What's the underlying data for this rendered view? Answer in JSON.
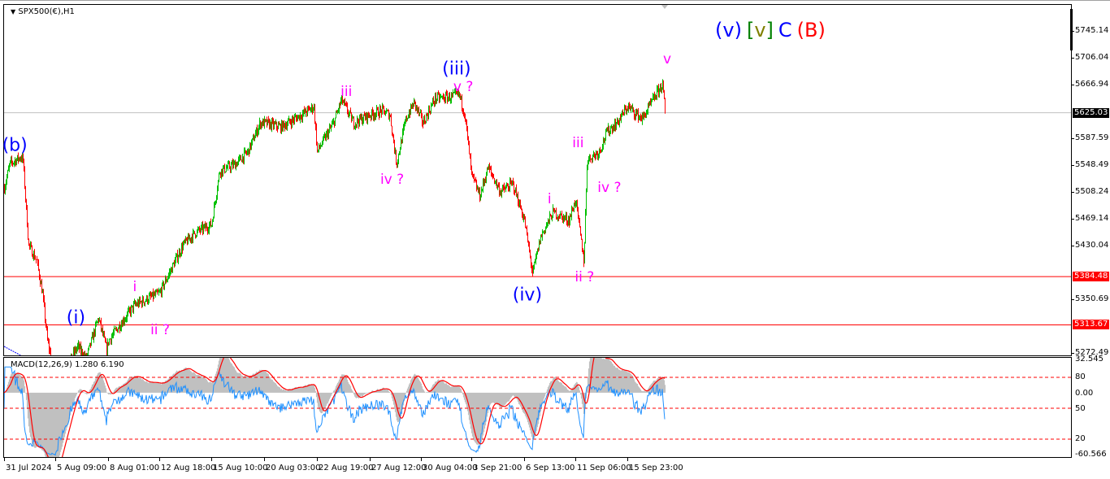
{
  "chart_data": {
    "type": "candlestick",
    "symbol_title": "SPX500(€),H1",
    "heading": [
      {
        "text": "(v)",
        "color": "#0000ff"
      },
      {
        "text": "[",
        "color": "#008000"
      },
      {
        "text": "v",
        "color": "#808000"
      },
      {
        "text": "]",
        "color": "#008000"
      },
      {
        "text": "C",
        "color": "#0000ff"
      },
      {
        "text": "(B)",
        "color": "#ff0000"
      }
    ],
    "price_axis": {
      "ticks": [
        "5745.14",
        "5706.04",
        "5666.94",
        "5587.59",
        "5548.49",
        "5508.24",
        "5469.14",
        "5430.04",
        "5350.69",
        "5272.49"
      ],
      "range": [
        5272.49,
        5745.14
      ]
    },
    "current_price": {
      "value": 5625.03,
      "label": "5625.03",
      "color": "#000000"
    },
    "horizontal_lines": [
      {
        "value": 5384.48,
        "label": "5384.48",
        "color": "#ff0000"
      },
      {
        "value": 5313.67,
        "label": "5313.67",
        "color": "#ff0000"
      }
    ],
    "time_axis": [
      {
        "label": "31 Jul 2024",
        "t": "2024-07-31T00:00"
      },
      {
        "label": "5 Aug 09:00",
        "t": "2024-08-05T09:00"
      },
      {
        "label": "8 Aug 01:00",
        "t": "2024-08-08T01:00"
      },
      {
        "label": "12 Aug 18:00",
        "t": "2024-08-12T18:00"
      },
      {
        "label": "15 Aug 10:00",
        "t": "2024-08-15T10:00"
      },
      {
        "label": "20 Aug 03:00",
        "t": "2024-08-20T03:00"
      },
      {
        "label": "22 Aug 19:00",
        "t": "2024-08-22T19:00"
      },
      {
        "label": "27 Aug 12:00",
        "t": "2024-08-27T12:00"
      },
      {
        "label": "30 Aug 04:00",
        "t": "2024-08-30T04:00"
      },
      {
        "label": "3 Sep 21:00",
        "t": "2024-09-03T21:00"
      },
      {
        "label": "6 Sep 13:00",
        "t": "2024-09-06T13:00"
      },
      {
        "label": "11 Sep 06:00",
        "t": "2024-09-11T06:00"
      },
      {
        "label": "15 Sep 23:00",
        "t": "2024-09-15T23:00"
      }
    ],
    "up_color": "#00c000",
    "down_color": "#ff0000",
    "price_path": [
      [
        "2024-07-31T00:00",
        5515
      ],
      [
        "2024-07-31T14:00",
        5550
      ],
      [
        "2024-08-01T17:00",
        5560
      ],
      [
        "2024-08-01T23:00",
        5556
      ],
      [
        "2024-08-02T13:00",
        5431
      ],
      [
        "2024-08-03T10:00",
        5407
      ],
      [
        "2024-08-04T00:00",
        5360
      ],
      [
        "2024-08-04T13:00",
        5288
      ],
      [
        "2024-08-05T09:00",
        5240
      ],
      [
        "2024-08-05T21:00",
        5250
      ],
      [
        "2024-08-06T12:00",
        5282
      ],
      [
        "2024-08-06T22:00",
        5264
      ],
      [
        "2024-08-07T13:00",
        5324
      ],
      [
        "2024-08-07T23:00",
        5276
      ],
      [
        "2024-08-08T01:00",
        5290
      ],
      [
        "2024-08-09T07:00",
        5318
      ],
      [
        "2024-08-10T10:00",
        5342
      ],
      [
        "2024-08-11T22:00",
        5354
      ],
      [
        "2024-08-12T18:00",
        5360
      ],
      [
        "2024-08-13T13:00",
        5407
      ],
      [
        "2024-08-13T23:00",
        5431
      ],
      [
        "2024-08-14T14:00",
        5449
      ],
      [
        "2024-08-15T10:00",
        5461
      ],
      [
        "2024-08-16T03:00",
        5539
      ],
      [
        "2024-08-17T14:00",
        5550
      ],
      [
        "2024-08-18T16:00",
        5568
      ],
      [
        "2024-08-19T18:00",
        5610
      ],
      [
        "2024-08-20T03:00",
        5610
      ],
      [
        "2024-08-20T23:00",
        5604
      ],
      [
        "2024-08-22T00:00",
        5622
      ],
      [
        "2024-08-22T15:00",
        5634
      ],
      [
        "2024-08-22T19:00",
        5568
      ],
      [
        "2024-08-24T06:00",
        5610
      ],
      [
        "2024-08-24T23:00",
        5644
      ],
      [
        "2024-08-26T01:00",
        5610
      ],
      [
        "2024-08-27T12:00",
        5622
      ],
      [
        "2024-08-28T03:00",
        5628
      ],
      [
        "2024-08-28T13:00",
        5622
      ],
      [
        "2024-08-28T21:00",
        5550
      ],
      [
        "2024-08-29T09:00",
        5616
      ],
      [
        "2024-08-29T19:00",
        5640
      ],
      [
        "2024-08-30T08:00",
        5610
      ],
      [
        "2024-08-31T11:00",
        5646
      ],
      [
        "2024-09-01T23:00",
        5648
      ],
      [
        "2024-09-02T17:00",
        5652
      ],
      [
        "2024-09-03T06:00",
        5622
      ],
      [
        "2024-09-03T21:00",
        5533
      ],
      [
        "2024-09-04T07:00",
        5503
      ],
      [
        "2024-09-04T17:00",
        5545
      ],
      [
        "2024-09-05T08:00",
        5509
      ],
      [
        "2024-09-05T23:00",
        5521
      ],
      [
        "2024-09-06T13:00",
        5467
      ],
      [
        "2024-09-07T07:00",
        5389
      ],
      [
        "2024-09-08T01:00",
        5443
      ],
      [
        "2024-09-09T04:00",
        5479
      ],
      [
        "2024-09-10T15:00",
        5467
      ],
      [
        "2024-09-11T06:00",
        5497
      ],
      [
        "2024-09-12T00:00",
        5407
      ],
      [
        "2024-09-12T07:00",
        5556
      ],
      [
        "2024-09-13T09:00",
        5568
      ],
      [
        "2024-09-14T03:00",
        5598
      ],
      [
        "2024-09-15T00:00",
        5610
      ],
      [
        "2024-09-15T23:00",
        5634
      ],
      [
        "2024-09-16T17:00",
        5616
      ],
      [
        "2024-09-17T13:00",
        5658
      ],
      [
        "2024-09-17T18:00",
        5667
      ],
      [
        "2024-09-17T21:00",
        5625
      ]
    ],
    "wave_labels": [
      {
        "text": "(b)",
        "color": "#0000ff",
        "t": "2024-08-01T03:00",
        "price": 5577,
        "size": "big"
      },
      {
        "text": "(i)",
        "color": "#0000ff",
        "t": "2024-08-06T10:00",
        "price": 5324,
        "size": "big"
      },
      {
        "text": "i",
        "color": "#ff00ff",
        "t": "2024-08-10T12:00",
        "price": 5369,
        "size": "small"
      },
      {
        "text": "ii ?",
        "color": "#ff00ff",
        "t": "2024-08-12T19:00",
        "price": 5306,
        "size": "small"
      },
      {
        "text": "iii",
        "color": "#ff00ff",
        "t": "2024-08-25T10:00",
        "price": 5656,
        "size": "small"
      },
      {
        "text": "iv ?",
        "color": "#ff00ff",
        "t": "2024-08-28T16:00",
        "price": 5527,
        "size": "small"
      },
      {
        "text": "(iii)",
        "color": "#0000ff",
        "t": "2024-09-02T12:00",
        "price": 5689,
        "size": "big"
      },
      {
        "text": "v ?",
        "color": "#ff00ff",
        "t": "2024-09-03T03:00",
        "price": 5663,
        "size": "small"
      },
      {
        "text": "(iv)",
        "color": "#0000ff",
        "t": "2024-09-06T20:00",
        "price": 5357,
        "size": "big"
      },
      {
        "text": "i",
        "color": "#ff00ff",
        "t": "2024-09-08T21:00",
        "price": 5498,
        "size": "small"
      },
      {
        "text": "ii ?",
        "color": "#ff00ff",
        "t": "2024-09-12T02:00",
        "price": 5383,
        "size": "small"
      },
      {
        "text": "iii",
        "color": "#ff00ff",
        "t": "2024-09-11T12:00",
        "price": 5580,
        "size": "small"
      },
      {
        "text": "iv ?",
        "color": "#ff00ff",
        "t": "2024-09-14T08:00",
        "price": 5515,
        "size": "small"
      },
      {
        "text": "v",
        "color": "#ff00ff",
        "t": "2024-09-18T00:00",
        "price": 5703,
        "size": "small"
      }
    ],
    "macd": {
      "title": "MACD(12,26,9) 1.280 6.190",
      "axis_labels": [
        "32.545",
        "80",
        "0.00",
        "50",
        "20",
        "-60.566"
      ],
      "range": [
        -60.566,
        32.545
      ],
      "levels": [
        80,
        50,
        20
      ],
      "level_color": "#ff0000",
      "histogram_color": "#c0c0c0",
      "signal_color": "#ff0000",
      "oscillator_color": "#1e90ff"
    }
  }
}
